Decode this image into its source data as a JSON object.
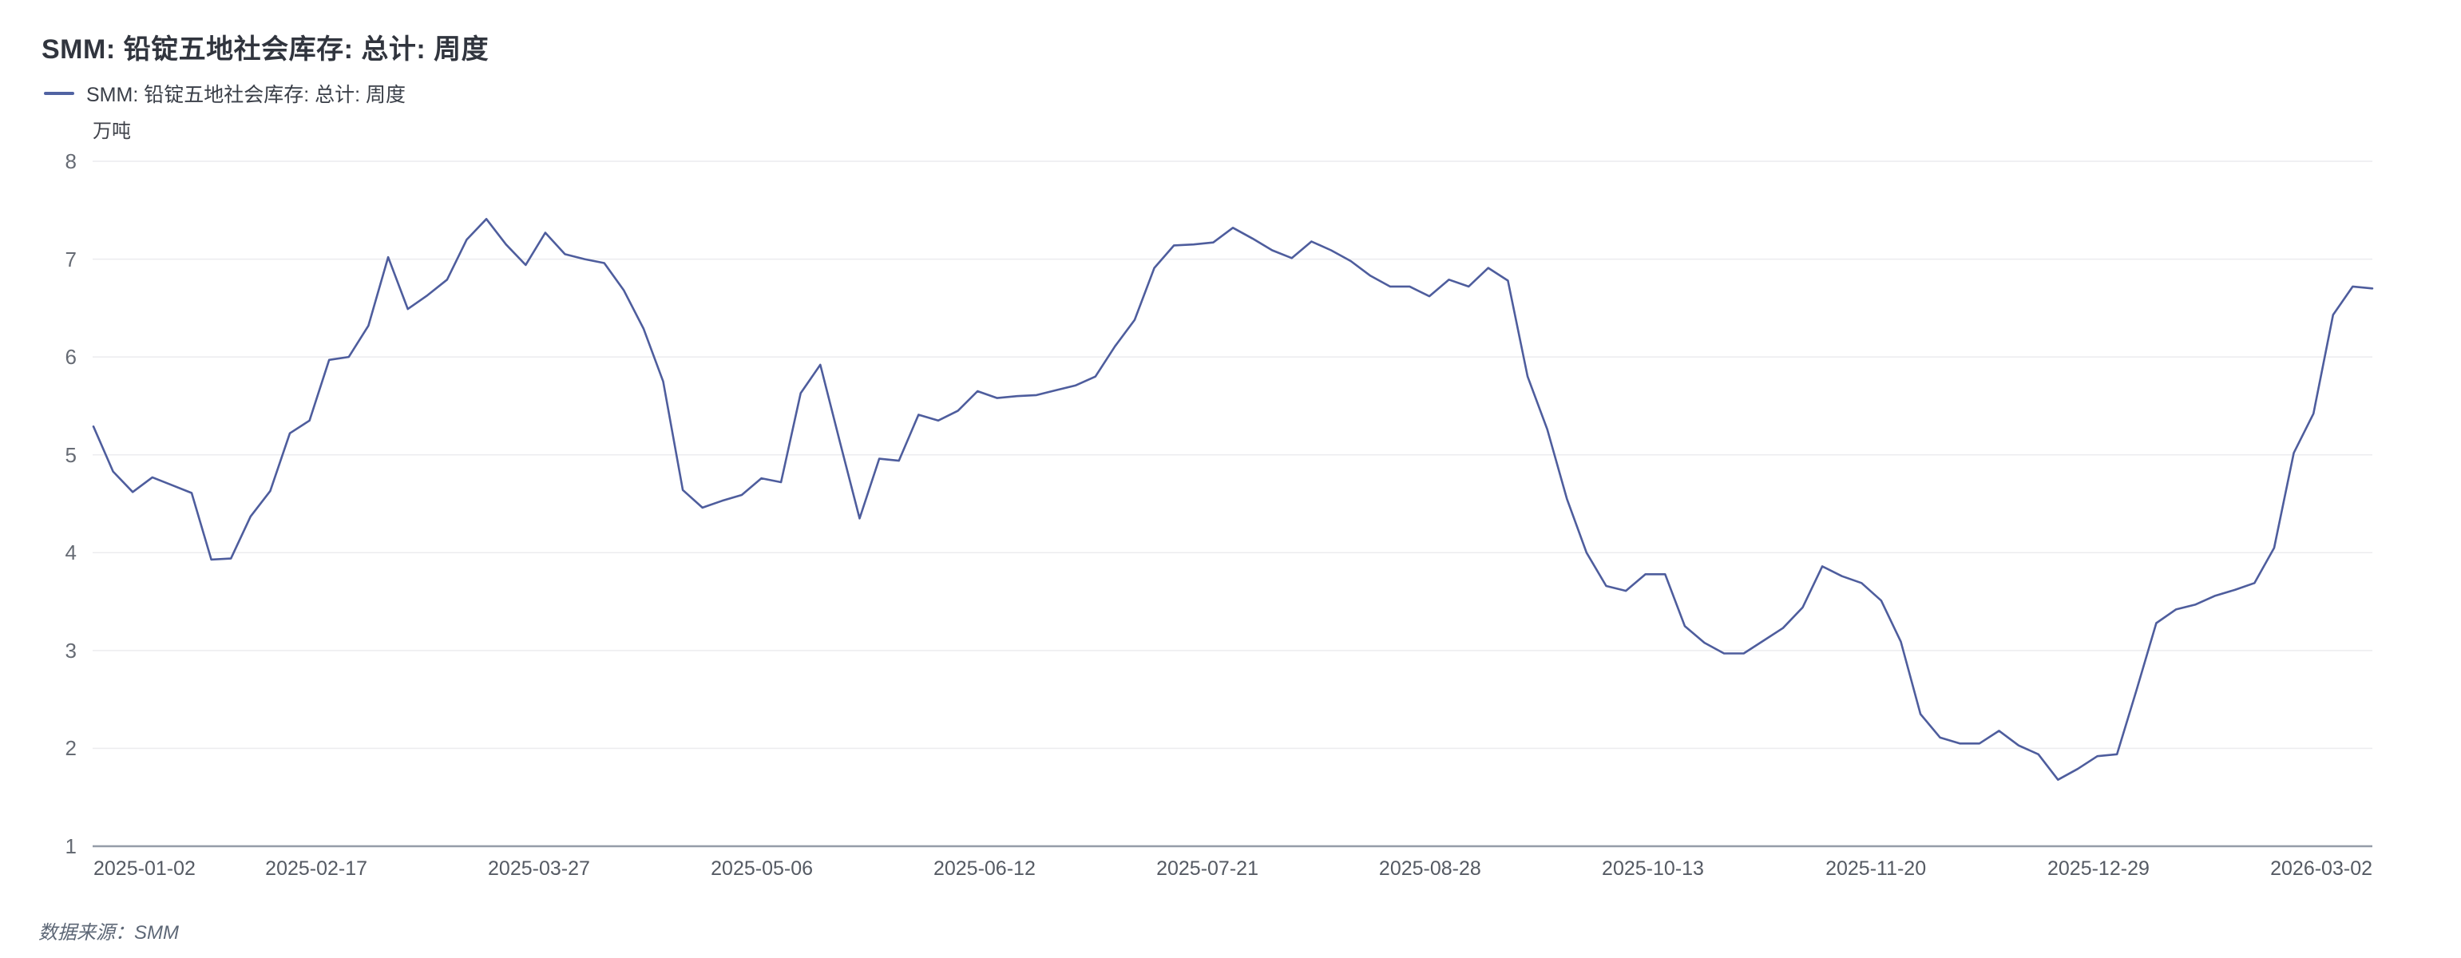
{
  "header": {
    "title": "SMM: 铅锭五地社会库存: 总计: 周度"
  },
  "legend": {
    "label": "SMM: 铅锭五地社会库存: 总计: 周度",
    "swatch_color": "#5163a2"
  },
  "axes": {
    "unit": "万吨",
    "y_ticks": [
      8,
      7,
      6,
      5,
      4,
      3,
      2,
      1
    ]
  },
  "footer": {
    "source": "数据来源：SMM"
  },
  "colors": {
    "line": "#4e5d9d",
    "grid": "#ececef",
    "axis_line": "#959ca8",
    "title": "#31353e",
    "axis_text": "#666b74",
    "source_text": "#5d6776"
  },
  "chart_data": {
    "type": "line",
    "title": "SMM: 铅锭五地社会库存: 总计: 周度",
    "series_name": "SMM: 铅锭五地社会库存: 总计: 周度",
    "ylabel": "万吨",
    "ylim": [
      1,
      8
    ],
    "y_ticks": [
      1,
      2,
      3,
      4,
      5,
      6,
      7,
      8
    ],
    "grid": "horizontal",
    "legend_position": "top-left",
    "x_tick_labels": [
      "2025-01-02",
      "2025-02-17",
      "2025-03-27",
      "2025-05-06",
      "2025-06-12",
      "2025-07-21",
      "2025-08-28",
      "2025-10-13",
      "2025-11-20",
      "2025-12-29",
      "2026-03-02"
    ],
    "x_tick_positions": [
      0,
      0.0978,
      0.1955,
      0.2933,
      0.391,
      0.4888,
      0.5865,
      0.6843,
      0.7821,
      0.8798,
      0.9776
    ],
    "values": [
      5.29,
      4.83,
      4.62,
      4.77,
      4.69,
      4.61,
      3.93,
      3.94,
      4.37,
      4.63,
      5.22,
      5.35,
      5.97,
      6.0,
      6.32,
      7.02,
      6.49,
      6.63,
      6.79,
      7.2,
      7.41,
      7.15,
      6.94,
      7.27,
      7.05,
      7.0,
      6.96,
      6.68,
      6.29,
      5.75,
      4.64,
      4.46,
      4.53,
      4.59,
      4.76,
      4.72,
      5.63,
      5.92,
      5.13,
      4.35,
      4.96,
      4.94,
      5.41,
      5.35,
      5.45,
      5.65,
      5.58,
      5.6,
      5.61,
      5.66,
      5.71,
      5.8,
      6.11,
      6.38,
      6.91,
      7.14,
      7.15,
      7.17,
      7.32,
      7.21,
      7.09,
      7.01,
      7.18,
      7.09,
      6.98,
      6.83,
      6.72,
      6.72,
      6.62,
      6.79,
      6.72,
      6.91,
      6.78,
      5.8,
      5.26,
      4.55,
      4.0,
      3.66,
      3.61,
      3.78,
      3.78,
      3.25,
      3.08,
      2.97,
      2.97,
      3.1,
      3.23,
      3.44,
      3.86,
      3.76,
      3.69,
      3.51,
      3.09,
      2.35,
      2.11,
      2.05,
      2.05,
      2.18,
      2.03,
      1.94,
      1.68,
      1.79,
      1.92,
      1.94,
      2.6,
      3.28,
      3.42,
      3.47,
      3.56,
      3.62,
      3.69,
      4.05,
      5.02,
      5.42,
      6.43,
      6.72,
      6.7
    ]
  }
}
